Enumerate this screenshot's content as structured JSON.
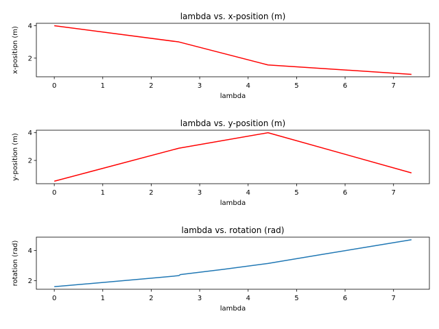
{
  "chart_data": [
    {
      "type": "line",
      "title": "lambda vs. x-position (m)",
      "xlabel": "lambda",
      "ylabel": "x-position (m)",
      "xlim": [
        -0.37,
        7.74
      ],
      "ylim": [
        0.85,
        4.15
      ],
      "xticks": [
        "0",
        "1",
        "2",
        "3",
        "4",
        "5",
        "6",
        "7"
      ],
      "yticks": [
        "2",
        "4"
      ],
      "xtick_values": [
        0,
        1,
        2,
        3,
        4,
        5,
        6,
        7
      ],
      "ytick_values": [
        2,
        4
      ],
      "series": [
        {
          "color": "#ff0000",
          "x": [
            0,
            2.57,
            4.41,
            7.37
          ],
          "y": [
            4.0,
            3.0,
            1.58,
            1.0
          ]
        }
      ]
    },
    {
      "type": "line",
      "title": "lambda vs. y-position (m)",
      "xlabel": "lambda",
      "ylabel": "y-position (m)",
      "xlim": [
        -0.37,
        7.74
      ],
      "ylim": [
        0.32,
        4.18
      ],
      "xticks": [
        "0",
        "1",
        "2",
        "3",
        "4",
        "5",
        "6",
        "7"
      ],
      "yticks": [
        "2",
        "4"
      ],
      "xtick_values": [
        0,
        1,
        2,
        3,
        4,
        5,
        6,
        7
      ],
      "ytick_values": [
        2,
        4
      ],
      "series": [
        {
          "color": "#ff0000",
          "x": [
            0,
            2.57,
            4.41,
            7.37
          ],
          "y": [
            0.5,
            2.88,
            4.0,
            1.1
          ]
        }
      ]
    },
    {
      "type": "line",
      "title": "lambda vs. rotation (rad)",
      "xlabel": "lambda",
      "ylabel": "rotation (rad)",
      "xlim": [
        -0.37,
        7.74
      ],
      "ylim": [
        1.43,
        4.88
      ],
      "xticks": [
        "0",
        "1",
        "2",
        "3",
        "4",
        "5",
        "6",
        "7"
      ],
      "yticks": [
        "2",
        "4"
      ],
      "xtick_values": [
        0,
        1,
        2,
        3,
        4,
        5,
        6,
        7
      ],
      "ytick_values": [
        2,
        4
      ],
      "series": [
        {
          "color": "#1f77b4",
          "x": [
            0,
            1,
            2,
            2.57,
            2.6,
            3.5,
            4.41,
            5.5,
            6.5,
            7.37
          ],
          "y": [
            1.6,
            1.88,
            2.16,
            2.33,
            2.4,
            2.75,
            3.14,
            3.72,
            4.25,
            4.71
          ]
        }
      ]
    }
  ]
}
